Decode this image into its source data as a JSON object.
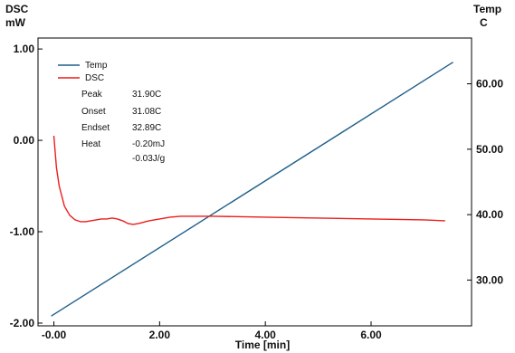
{
  "chart_data": {
    "type": "line",
    "xlabel": "Time  [min]",
    "y_left_label": [
      "DSC",
      "mW"
    ],
    "y_right_label": [
      "Temp",
      "C"
    ],
    "xlim": [
      -0.3,
      7.9
    ],
    "ylim_left": [
      -2.03,
      1.12
    ],
    "ylim_right": [
      23.0,
      67.0
    ],
    "x_ticks": [
      0,
      2,
      4,
      6
    ],
    "x_tick_labels": [
      "-0.00",
      "2.00",
      "4.00",
      "6.00"
    ],
    "y_left_ticks": [
      1,
      0,
      -1,
      -2
    ],
    "y_left_tick_labels": [
      "1.00",
      "0.00",
      "-1.00",
      "-2.00"
    ],
    "y_right_ticks": [
      60,
      50,
      40,
      30
    ],
    "y_right_tick_labels": [
      "60.00",
      "50.00",
      "40.00",
      "30.00"
    ],
    "grid": false,
    "legend_position": "top-left",
    "series": [
      {
        "name": "Temp",
        "axis": "right",
        "color": "#1f5f8b",
        "x": [
          -0.05,
          7.55
        ],
        "y": [
          24.5,
          63.3
        ]
      },
      {
        "name": "DSC",
        "axis": "left",
        "color": "#ee1c1c",
        "x": [
          0.0,
          0.05,
          0.1,
          0.2,
          0.3,
          0.4,
          0.5,
          0.6,
          0.7,
          0.8,
          0.9,
          1.0,
          1.1,
          1.2,
          1.3,
          1.4,
          1.5,
          1.6,
          1.8,
          2.0,
          2.2,
          2.4,
          3.0,
          4.0,
          5.0,
          6.0,
          7.0,
          7.4
        ],
        "y": [
          0.05,
          -0.3,
          -0.5,
          -0.72,
          -0.82,
          -0.87,
          -0.89,
          -0.89,
          -0.88,
          -0.87,
          -0.86,
          -0.86,
          -0.85,
          -0.86,
          -0.88,
          -0.91,
          -0.92,
          -0.91,
          -0.88,
          -0.86,
          -0.84,
          -0.83,
          -0.83,
          -0.84,
          -0.85,
          -0.86,
          -0.87,
          -0.88
        ]
      }
    ],
    "annotations": [
      {
        "label": "Peak",
        "value": "31.90C"
      },
      {
        "label": "Onset",
        "value": "31.08C"
      },
      {
        "label": "Endset",
        "value": "32.89C"
      },
      {
        "label": "Heat",
        "value": "-0.20mJ"
      },
      {
        "label": "",
        "value": "-0.03J/g"
      }
    ]
  }
}
